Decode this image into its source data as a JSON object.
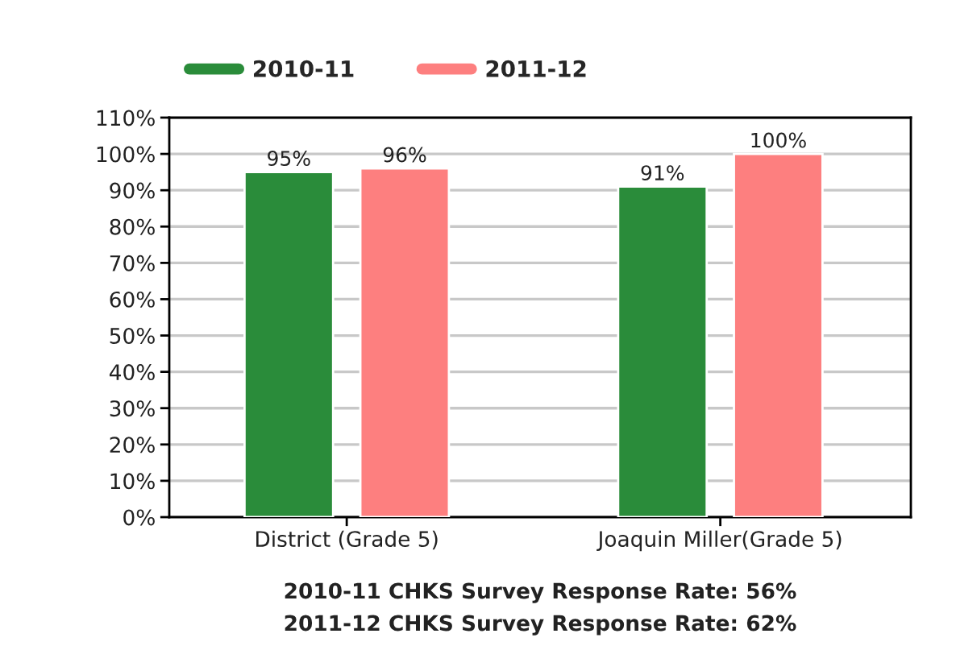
{
  "chart_data": {
    "type": "bar",
    "categories": [
      "District (Grade 5)",
      "Joaquin Miller(Grade 5)"
    ],
    "series": [
      {
        "name": "2010-11",
        "color": "#2a8c3a",
        "values": [
          95,
          91
        ],
        "value_labels": [
          "95%",
          "91%"
        ]
      },
      {
        "name": "2011-12",
        "color": "#fd7f7f",
        "values": [
          96,
          100
        ],
        "value_labels": [
          "96%",
          "100%"
        ]
      }
    ],
    "ylim": [
      0,
      110
    ],
    "yticks": [
      {
        "value": 0,
        "label": "0%"
      },
      {
        "value": 10,
        "label": "10%"
      },
      {
        "value": 20,
        "label": "20%"
      },
      {
        "value": 30,
        "label": "30%"
      },
      {
        "value": 40,
        "label": "40%"
      },
      {
        "value": 50,
        "label": "50%"
      },
      {
        "value": 60,
        "label": "60%"
      },
      {
        "value": 70,
        "label": "70%"
      },
      {
        "value": 80,
        "label": "80%"
      },
      {
        "value": 90,
        "label": "90%"
      },
      {
        "value": 100,
        "label": "100%"
      },
      {
        "value": 110,
        "label": "110%"
      }
    ],
    "grid": "y",
    "legend": "top left",
    "annotations": [
      "2010-11 CHKS Survey Response Rate: 56%",
      "2011-12 CHKS Survey Response Rate: 62%"
    ]
  }
}
